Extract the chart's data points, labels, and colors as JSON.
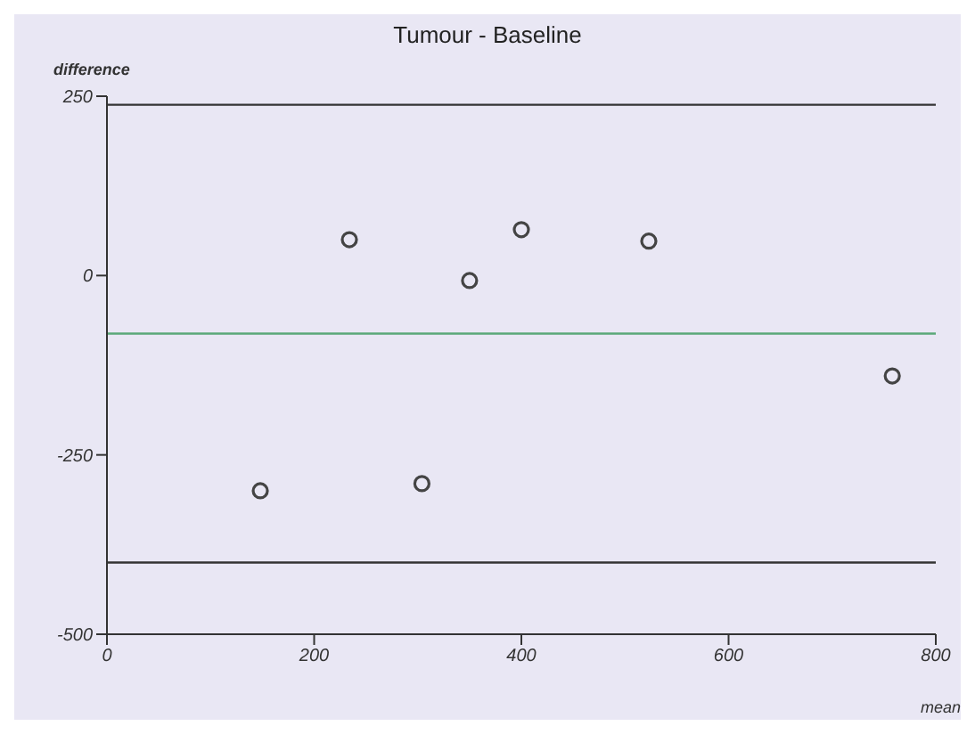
{
  "chart_data": {
    "type": "scatter",
    "title": "Tumour - Baseline",
    "xlabel": "mean",
    "ylabel": "difference",
    "x": [
      148,
      234,
      304,
      350,
      400,
      523,
      758
    ],
    "values": [
      -300,
      50,
      -290,
      -7,
      64,
      48,
      -140
    ],
    "color": "#444444",
    "marker": "circle",
    "grid": false,
    "xlim": [
      0,
      800
    ],
    "xticks": [
      0,
      200,
      400,
      600,
      800
    ],
    "ylim": [
      -500,
      250
    ],
    "yticks": [
      -500,
      -250,
      0,
      250
    ],
    "ref_lines": [
      {
        "axis": "y",
        "value": 238,
        "color": "#333333"
      },
      {
        "axis": "y",
        "value": -81,
        "color": "#5aa878"
      },
      {
        "axis": "y",
        "value": -400,
        "color": "#333333"
      }
    ]
  }
}
